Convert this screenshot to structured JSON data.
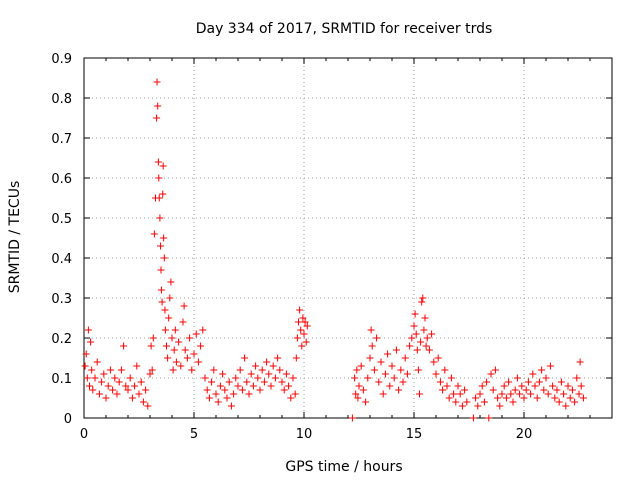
{
  "chart_data": {
    "type": "scatter",
    "title": "Day 334 of 2017, SRMTID for receiver trds",
    "xlabel": "GPS time / hours",
    "ylabel": "SRMTID / TECUs",
    "xlim": [
      0,
      24
    ],
    "ylim": [
      0,
      0.9
    ],
    "x_ticks": [
      0,
      5,
      10,
      15,
      20
    ],
    "x_tick_labels": [
      "0",
      "5",
      "10",
      "15",
      "20"
    ],
    "y_ticks": [
      0,
      0.1,
      0.2,
      0.3,
      0.4,
      0.5,
      0.6,
      0.7,
      0.8,
      0.9
    ],
    "y_tick_labels": [
      "0",
      "0.1",
      "0.2",
      "0.3",
      "0.4",
      "0.5",
      "0.6",
      "0.7",
      "0.8",
      "0.9"
    ],
    "grid": true,
    "marker": "+",
    "marker_color": "#ff0000",
    "series": [
      {
        "name": "SRMTID",
        "points": [
          [
            0.05,
            0.13
          ],
          [
            0.1,
            0.16
          ],
          [
            0.15,
            0.1
          ],
          [
            0.2,
            0.22
          ],
          [
            0.25,
            0.08
          ],
          [
            0.3,
            0.19
          ],
          [
            0.35,
            0.12
          ],
          [
            0.4,
            0.07
          ],
          [
            0.5,
            0.1
          ],
          [
            0.6,
            0.14
          ],
          [
            0.7,
            0.06
          ],
          [
            0.8,
            0.09
          ],
          [
            0.9,
            0.11
          ],
          [
            1.0,
            0.05
          ],
          [
            1.1,
            0.08
          ],
          [
            1.2,
            0.12
          ],
          [
            1.3,
            0.07
          ],
          [
            1.4,
            0.1
          ],
          [
            1.5,
            0.06
          ],
          [
            1.6,
            0.09
          ],
          [
            1.7,
            0.12
          ],
          [
            1.8,
            0.18
          ],
          [
            1.9,
            0.08
          ],
          [
            2.0,
            0.07
          ],
          [
            2.1,
            0.1
          ],
          [
            2.2,
            0.05
          ],
          [
            2.3,
            0.08
          ],
          [
            2.4,
            0.13
          ],
          [
            2.5,
            0.06
          ],
          [
            2.6,
            0.09
          ],
          [
            2.7,
            0.04
          ],
          [
            2.8,
            0.07
          ],
          [
            2.9,
            0.03
          ],
          [
            3.0,
            0.11
          ],
          [
            3.05,
            0.18
          ],
          [
            3.1,
            0.12
          ],
          [
            3.15,
            0.2
          ],
          [
            3.2,
            0.46
          ],
          [
            3.25,
            0.55
          ],
          [
            3.3,
            0.75
          ],
          [
            3.32,
            0.84
          ],
          [
            3.35,
            0.78
          ],
          [
            3.38,
            0.64
          ],
          [
            3.4,
            0.6
          ],
          [
            3.42,
            0.55
          ],
          [
            3.45,
            0.5
          ],
          [
            3.48,
            0.43
          ],
          [
            3.5,
            0.37
          ],
          [
            3.52,
            0.32
          ],
          [
            3.55,
            0.29
          ],
          [
            3.58,
            0.56
          ],
          [
            3.6,
            0.63
          ],
          [
            3.62,
            0.45
          ],
          [
            3.65,
            0.4
          ],
          [
            3.68,
            0.27
          ],
          [
            3.7,
            0.22
          ],
          [
            3.75,
            0.18
          ],
          [
            3.8,
            0.15
          ],
          [
            3.85,
            0.25
          ],
          [
            3.9,
            0.3
          ],
          [
            3.95,
            0.34
          ],
          [
            4.0,
            0.2
          ],
          [
            4.05,
            0.12
          ],
          [
            4.1,
            0.17
          ],
          [
            4.15,
            0.22
          ],
          [
            4.2,
            0.14
          ],
          [
            4.3,
            0.19
          ],
          [
            4.4,
            0.13
          ],
          [
            4.5,
            0.24
          ],
          [
            4.55,
            0.28
          ],
          [
            4.6,
            0.17
          ],
          [
            4.7,
            0.15
          ],
          [
            4.8,
            0.2
          ],
          [
            4.9,
            0.12
          ],
          [
            5.0,
            0.16
          ],
          [
            5.1,
            0.21
          ],
          [
            5.2,
            0.14
          ],
          [
            5.3,
            0.18
          ],
          [
            5.4,
            0.22
          ],
          [
            5.5,
            0.1
          ],
          [
            5.6,
            0.07
          ],
          [
            5.7,
            0.05
          ],
          [
            5.8,
            0.09
          ],
          [
            5.9,
            0.12
          ],
          [
            6.0,
            0.06
          ],
          [
            6.1,
            0.04
          ],
          [
            6.2,
            0.08
          ],
          [
            6.3,
            0.11
          ],
          [
            6.4,
            0.07
          ],
          [
            6.5,
            0.05
          ],
          [
            6.6,
            0.09
          ],
          [
            6.7,
            0.03
          ],
          [
            6.8,
            0.06
          ],
          [
            6.9,
            0.1
          ],
          [
            7.0,
            0.08
          ],
          [
            7.1,
            0.12
          ],
          [
            7.2,
            0.07
          ],
          [
            7.3,
            0.15
          ],
          [
            7.4,
            0.09
          ],
          [
            7.5,
            0.06
          ],
          [
            7.6,
            0.11
          ],
          [
            7.7,
            0.08
          ],
          [
            7.8,
            0.13
          ],
          [
            7.9,
            0.1
          ],
          [
            8.0,
            0.07
          ],
          [
            8.1,
            0.12
          ],
          [
            8.2,
            0.09
          ],
          [
            8.3,
            0.14
          ],
          [
            8.4,
            0.11
          ],
          [
            8.5,
            0.08
          ],
          [
            8.6,
            0.13
          ],
          [
            8.7,
            0.1
          ],
          [
            8.8,
            0.15
          ],
          [
            8.9,
            0.12
          ],
          [
            9.0,
            0.09
          ],
          [
            9.1,
            0.07
          ],
          [
            9.2,
            0.11
          ],
          [
            9.3,
            0.08
          ],
          [
            9.4,
            0.05
          ],
          [
            9.5,
            0.1
          ],
          [
            9.6,
            0.06
          ],
          [
            9.65,
            0.15
          ],
          [
            9.7,
            0.2
          ],
          [
            9.75,
            0.24
          ],
          [
            9.8,
            0.27
          ],
          [
            9.85,
            0.22
          ],
          [
            9.9,
            0.18
          ],
          [
            9.95,
            0.25
          ],
          [
            10.0,
            0.21
          ],
          [
            10.05,
            0.24
          ],
          [
            10.1,
            0.19
          ],
          [
            10.15,
            0.23
          ],
          [
            12.2,
            0.0
          ],
          [
            12.3,
            0.1
          ],
          [
            12.35,
            0.06
          ],
          [
            12.4,
            0.12
          ],
          [
            12.45,
            0.05
          ],
          [
            12.5,
            0.08
          ],
          [
            12.6,
            0.13
          ],
          [
            12.7,
            0.07
          ],
          [
            12.8,
            0.04
          ],
          [
            12.9,
            0.1
          ],
          [
            13.0,
            0.15
          ],
          [
            13.05,
            0.22
          ],
          [
            13.1,
            0.18
          ],
          [
            13.2,
            0.12
          ],
          [
            13.3,
            0.2
          ],
          [
            13.4,
            0.09
          ],
          [
            13.5,
            0.14
          ],
          [
            13.6,
            0.06
          ],
          [
            13.7,
            0.11
          ],
          [
            13.8,
            0.16
          ],
          [
            13.9,
            0.08
          ],
          [
            14.0,
            0.13
          ],
          [
            14.1,
            0.1
          ],
          [
            14.2,
            0.17
          ],
          [
            14.3,
            0.07
          ],
          [
            14.4,
            0.12
          ],
          [
            14.5,
            0.09
          ],
          [
            14.6,
            0.15
          ],
          [
            14.7,
            0.11
          ],
          [
            14.8,
            0.18
          ],
          [
            14.9,
            0.2
          ],
          [
            15.0,
            0.23
          ],
          [
            15.05,
            0.26
          ],
          [
            15.1,
            0.21
          ],
          [
            15.15,
            0.17
          ],
          [
            15.2,
            0.12
          ],
          [
            15.25,
            0.06
          ],
          [
            15.3,
            0.19
          ],
          [
            15.35,
            0.29
          ],
          [
            15.4,
            0.3
          ],
          [
            15.45,
            0.22
          ],
          [
            15.5,
            0.25
          ],
          [
            15.55,
            0.18
          ],
          [
            15.6,
            0.2
          ],
          [
            15.7,
            0.17
          ],
          [
            15.8,
            0.21
          ],
          [
            15.9,
            0.14
          ],
          [
            16.0,
            0.11
          ],
          [
            16.1,
            0.15
          ],
          [
            16.2,
            0.09
          ],
          [
            16.3,
            0.07
          ],
          [
            16.4,
            0.12
          ],
          [
            16.5,
            0.08
          ],
          [
            16.6,
            0.05
          ],
          [
            16.7,
            0.1
          ],
          [
            16.8,
            0.06
          ],
          [
            16.9,
            0.04
          ],
          [
            17.0,
            0.08
          ],
          [
            17.1,
            0.06
          ],
          [
            17.2,
            0.03
          ],
          [
            17.3,
            0.07
          ],
          [
            17.4,
            0.04
          ],
          [
            17.7,
            0.0
          ],
          [
            17.8,
            0.05
          ],
          [
            17.9,
            0.03
          ],
          [
            18.0,
            0.06
          ],
          [
            18.1,
            0.08
          ],
          [
            18.2,
            0.04
          ],
          [
            18.3,
            0.09
          ],
          [
            18.4,
            0.0
          ],
          [
            18.5,
            0.11
          ],
          [
            18.6,
            0.07
          ],
          [
            18.7,
            0.12
          ],
          [
            18.8,
            0.05
          ],
          [
            18.9,
            0.03
          ],
          [
            19.0,
            0.06
          ],
          [
            19.1,
            0.08
          ],
          [
            19.2,
            0.05
          ],
          [
            19.3,
            0.09
          ],
          [
            19.4,
            0.06
          ],
          [
            19.5,
            0.04
          ],
          [
            19.6,
            0.07
          ],
          [
            19.7,
            0.1
          ],
          [
            19.8,
            0.06
          ],
          [
            19.9,
            0.08
          ],
          [
            20.0,
            0.05
          ],
          [
            20.1,
            0.07
          ],
          [
            20.2,
            0.09
          ],
          [
            20.3,
            0.06
          ],
          [
            20.4,
            0.11
          ],
          [
            20.5,
            0.08
          ],
          [
            20.6,
            0.05
          ],
          [
            20.7,
            0.09
          ],
          [
            20.8,
            0.12
          ],
          [
            20.9,
            0.07
          ],
          [
            21.0,
            0.1
          ],
          [
            21.1,
            0.06
          ],
          [
            21.2,
            0.13
          ],
          [
            21.3,
            0.08
          ],
          [
            21.4,
            0.05
          ],
          [
            21.5,
            0.07
          ],
          [
            21.6,
            0.04
          ],
          [
            21.7,
            0.09
          ],
          [
            21.8,
            0.06
          ],
          [
            21.9,
            0.03
          ],
          [
            22.0,
            0.08
          ],
          [
            22.1,
            0.05
          ],
          [
            22.2,
            0.07
          ],
          [
            22.3,
            0.04
          ],
          [
            22.4,
            0.1
          ],
          [
            22.5,
            0.06
          ],
          [
            22.55,
            0.14
          ],
          [
            22.6,
            0.08
          ],
          [
            22.7,
            0.05
          ]
        ]
      }
    ]
  }
}
